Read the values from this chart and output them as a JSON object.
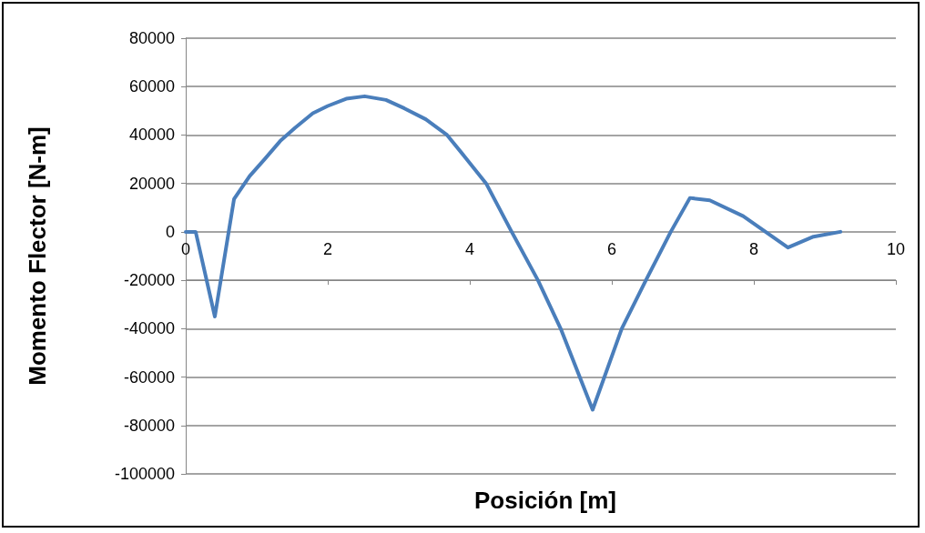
{
  "chart_data": {
    "type": "line",
    "xlabel": "Posición [m]",
    "ylabel": "Momento Flector [N-m]",
    "x": [
      0,
      0.14,
      0.41,
      0.68,
      0.9,
      1.11,
      1.33,
      1.54,
      1.79,
      2.0,
      2.26,
      2.52,
      2.82,
      3.08,
      3.38,
      3.68,
      3.93,
      4.23,
      4.59,
      4.96,
      5.28,
      5.73,
      6.14,
      6.48,
      6.83,
      7.1,
      7.38,
      7.85,
      8.48,
      8.84,
      9.22
    ],
    "series": [
      {
        "color": "#4a7ebb",
        "values": [
          0,
          0,
          -35000,
          13500,
          23000,
          30000,
          37500,
          43000,
          49000,
          52000,
          55000,
          56000,
          54500,
          51000,
          46500,
          40000,
          31000,
          20000,
          0,
          -20000,
          -40000,
          -73500,
          -40000,
          -20000,
          0,
          14000,
          13000,
          6500,
          -6500,
          -2000,
          0
        ]
      }
    ],
    "xlim": [
      0,
      10
    ],
    "xticks": [
      0,
      2,
      4,
      6,
      8,
      10
    ],
    "ylim": [
      -100000,
      80000
    ],
    "yticks": [
      -100000,
      -80000,
      -60000,
      -40000,
      -20000,
      0,
      20000,
      40000,
      60000,
      80000
    ],
    "grid": "y",
    "marker": "none",
    "line_style": "solid"
  }
}
